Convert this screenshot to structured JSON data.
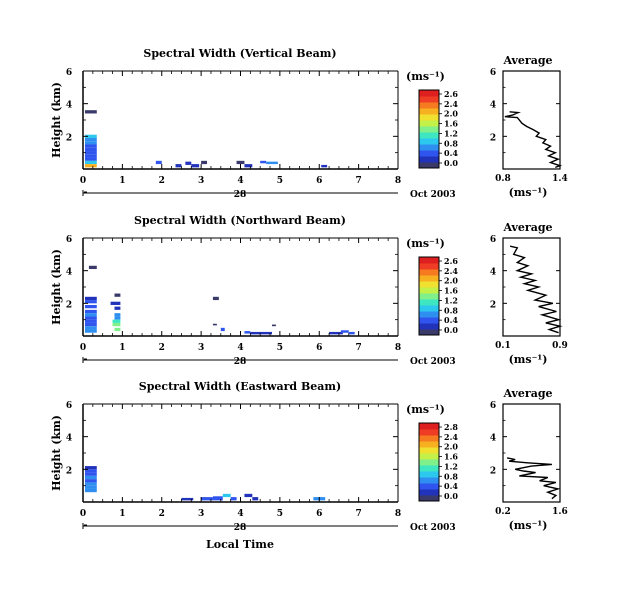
{
  "figure": {
    "xlabel": "Local Time",
    "date_label": "Oct 2003",
    "day_label": "28",
    "ylabel": "Height (km)",
    "colorbar_unit": "(ms⁻¹)",
    "avg_title": "Average",
    "avg_xlabel": "(ms⁻¹)"
  },
  "colors": {
    "colorbar": [
      "#3a3a6a",
      "#2233bb",
      "#2f55ee",
      "#2f8ff0",
      "#2cc8ee",
      "#3ee6c2",
      "#7ff08a",
      "#c4f04a",
      "#f0e030",
      "#f7b020",
      "#f57a20",
      "#ee3d24",
      "#dd1f1f"
    ]
  },
  "chart_data": [
    {
      "type": "heatmap",
      "title": "Spectral Width (Vertical Beam)",
      "xlim": [
        0,
        8
      ],
      "ylim": [
        0,
        6
      ],
      "x_ticks": [
        "0",
        "1",
        "2",
        "3",
        "4",
        "5",
        "6",
        "7",
        "8"
      ],
      "y_ticks": [
        "2",
        "4",
        "6"
      ],
      "colorbar_ticks": [
        "2.6",
        "2.4",
        "2.0",
        "1.6",
        "1.2",
        "0.8",
        "0.4",
        "0.0"
      ],
      "cells": [
        [
          0.05,
          0.35,
          1.9,
          2.1,
          0.9
        ],
        [
          0.05,
          0.35,
          1.7,
          1.9,
          0.7
        ],
        [
          0.05,
          0.35,
          1.5,
          1.7,
          0.6
        ],
        [
          0.05,
          0.35,
          1.3,
          1.5,
          0.5
        ],
        [
          0.05,
          0.35,
          1.1,
          1.3,
          0.5
        ],
        [
          0.05,
          0.35,
          0.9,
          1.1,
          0.4
        ],
        [
          0.05,
          0.35,
          0.7,
          0.9,
          0.45
        ],
        [
          0.05,
          0.35,
          0.5,
          0.7,
          0.5
        ],
        [
          0.05,
          0.35,
          0.3,
          0.5,
          0.9
        ],
        [
          0.05,
          0.35,
          0.1,
          0.3,
          1.9
        ],
        [
          0.05,
          0.35,
          3.4,
          3.6,
          0.1
        ],
        [
          1.85,
          2.0,
          0.3,
          0.5,
          0.4
        ],
        [
          2.35,
          2.5,
          0.1,
          0.3,
          0.3
        ],
        [
          2.6,
          2.75,
          0.25,
          0.45,
          0.2
        ],
        [
          2.75,
          2.95,
          0.1,
          0.3,
          0.3
        ],
        [
          3.0,
          3.15,
          0.3,
          0.5,
          0.1
        ],
        [
          3.9,
          4.1,
          0.3,
          0.5,
          0.1
        ],
        [
          4.1,
          4.3,
          0.1,
          0.3,
          0.3
        ],
        [
          4.5,
          4.65,
          0.35,
          0.5,
          0.5
        ],
        [
          4.65,
          4.95,
          0.3,
          0.45,
          0.6
        ],
        [
          6.05,
          6.2,
          0.1,
          0.25,
          0.3
        ]
      ],
      "avg_xlim": [
        0.8,
        1.4
      ],
      "avg_xticks": [
        "0.8",
        "1.4"
      ],
      "avg_ylim": [
        0,
        6
      ],
      "avg_yticks": [
        "2",
        "4",
        "6"
      ],
      "avg_profile": [
        [
          0.87,
          3.5
        ],
        [
          0.96,
          3.45
        ],
        [
          0.9,
          3.3
        ],
        [
          0.82,
          3.2
        ],
        [
          0.95,
          3.15
        ],
        [
          1.0,
          2.8
        ],
        [
          1.05,
          2.6
        ],
        [
          1.12,
          2.4
        ],
        [
          1.18,
          2.2
        ],
        [
          1.15,
          2.0
        ],
        [
          1.25,
          1.8
        ],
        [
          1.22,
          1.6
        ],
        [
          1.3,
          1.4
        ],
        [
          1.25,
          1.2
        ],
        [
          1.35,
          1.0
        ],
        [
          1.28,
          0.8
        ],
        [
          1.38,
          0.6
        ],
        [
          1.3,
          0.4
        ],
        [
          1.4,
          0.2
        ],
        [
          1.35,
          0.1
        ]
      ]
    },
    {
      "type": "heatmap",
      "title": "Spectral Width (Northward Beam)",
      "xlim": [
        0,
        8
      ],
      "ylim": [
        0,
        6
      ],
      "x_ticks": [
        "0",
        "1",
        "2",
        "3",
        "4",
        "5",
        "6",
        "7",
        "8"
      ],
      "y_ticks": [
        "2",
        "4",
        "6"
      ],
      "colorbar_ticks": [
        "2.6",
        "2.4",
        "2.0",
        "1.6",
        "1.2",
        "0.8",
        "0.4",
        "0.0"
      ],
      "cells": [
        [
          0.15,
          0.35,
          4.1,
          4.3,
          0.1
        ],
        [
          0.05,
          0.35,
          2.2,
          2.4,
          0.3
        ],
        [
          0.05,
          0.35,
          2.0,
          2.2,
          0.5
        ],
        [
          0.05,
          0.35,
          1.7,
          1.9,
          0.4
        ],
        [
          0.05,
          0.35,
          1.4,
          1.6,
          0.5
        ],
        [
          0.05,
          0.35,
          1.2,
          1.4,
          0.6
        ],
        [
          0.05,
          0.35,
          1.0,
          1.2,
          0.4
        ],
        [
          0.05,
          0.35,
          0.8,
          1.0,
          0.45
        ],
        [
          0.05,
          0.35,
          0.6,
          0.8,
          0.5
        ],
        [
          0.05,
          0.35,
          0.4,
          0.6,
          0.6
        ],
        [
          0.05,
          0.35,
          0.2,
          0.4,
          0.7
        ],
        [
          0.8,
          0.95,
          2.4,
          2.6,
          0.1
        ],
        [
          0.7,
          0.95,
          1.9,
          2.1,
          0.3
        ],
        [
          0.8,
          0.95,
          1.6,
          1.8,
          0.3
        ],
        [
          0.8,
          0.95,
          1.2,
          1.4,
          0.7
        ],
        [
          0.8,
          0.95,
          1.0,
          1.2,
          0.6
        ],
        [
          0.75,
          0.95,
          0.8,
          1.0,
          1.1
        ],
        [
          0.75,
          0.95,
          0.6,
          0.8,
          1.3
        ],
        [
          0.8,
          0.95,
          0.3,
          0.5,
          1.4
        ],
        [
          3.3,
          3.45,
          2.2,
          2.4,
          0.1
        ],
        [
          3.3,
          3.4,
          0.65,
          0.75,
          0.0
        ],
        [
          3.5,
          3.6,
          0.3,
          0.5,
          0.4
        ],
        [
          4.1,
          4.25,
          0.15,
          0.3,
          0.5
        ],
        [
          4.25,
          4.8,
          0.1,
          0.25,
          0.2
        ],
        [
          4.8,
          4.9,
          0.6,
          0.7,
          0.0
        ],
        [
          6.25,
          6.6,
          0.1,
          0.25,
          0.3
        ],
        [
          6.55,
          6.75,
          0.2,
          0.35,
          0.5
        ],
        [
          6.75,
          6.9,
          0.1,
          0.25,
          0.4
        ]
      ],
      "avg_xlim": [
        0.1,
        0.9
      ],
      "avg_xticks": [
        "0.1",
        "0.9"
      ],
      "avg_ylim": [
        0,
        6
      ],
      "avg_yticks": [
        "2",
        "4",
        "6"
      ],
      "avg_profile": [
        [
          0.2,
          5.5
        ],
        [
          0.3,
          5.4
        ],
        [
          0.25,
          5.0
        ],
        [
          0.4,
          4.8
        ],
        [
          0.3,
          4.5
        ],
        [
          0.45,
          4.3
        ],
        [
          0.3,
          4.0
        ],
        [
          0.5,
          3.8
        ],
        [
          0.35,
          3.6
        ],
        [
          0.55,
          3.4
        ],
        [
          0.4,
          3.2
        ],
        [
          0.6,
          3.0
        ],
        [
          0.45,
          2.8
        ],
        [
          0.7,
          2.5
        ],
        [
          0.55,
          2.2
        ],
        [
          0.8,
          2.0
        ],
        [
          0.6,
          1.8
        ],
        [
          0.85,
          1.5
        ],
        [
          0.65,
          1.3
        ],
        [
          0.88,
          1.0
        ],
        [
          0.7,
          0.8
        ],
        [
          0.9,
          0.6
        ],
        [
          0.75,
          0.4
        ],
        [
          0.88,
          0.2
        ]
      ]
    },
    {
      "type": "heatmap",
      "title": "Spectral Width (Eastward Beam)",
      "xlim": [
        0,
        8
      ],
      "ylim": [
        0,
        6
      ],
      "x_ticks": [
        "0",
        "1",
        "2",
        "3",
        "4",
        "5",
        "6",
        "7",
        "8"
      ],
      "y_ticks": [
        "2",
        "4",
        "6"
      ],
      "colorbar_ticks": [
        "2.8",
        "2.4",
        "2.0",
        "1.6",
        "1.2",
        "0.8",
        "0.4",
        "0.0"
      ],
      "cells": [
        [
          0.05,
          0.35,
          2.0,
          2.2,
          0.2
        ],
        [
          0.05,
          0.35,
          1.8,
          2.0,
          0.4
        ],
        [
          0.05,
          0.35,
          1.6,
          1.8,
          0.5
        ],
        [
          0.05,
          0.35,
          1.4,
          1.6,
          0.6
        ],
        [
          0.05,
          0.35,
          1.2,
          1.4,
          0.5
        ],
        [
          0.05,
          0.35,
          1.0,
          1.2,
          0.6
        ],
        [
          0.05,
          0.35,
          0.8,
          1.0,
          0.55
        ],
        [
          0.05,
          0.35,
          0.6,
          0.8,
          0.6
        ],
        [
          2.5,
          2.8,
          0.1,
          0.25,
          0.3
        ],
        [
          3.0,
          3.3,
          0.1,
          0.3,
          0.4
        ],
        [
          3.3,
          3.55,
          0.1,
          0.35,
          0.5
        ],
        [
          3.55,
          3.75,
          0.3,
          0.5,
          0.8
        ],
        [
          3.75,
          3.9,
          0.1,
          0.3,
          0.4
        ],
        [
          4.1,
          4.3,
          0.3,
          0.5,
          0.2
        ],
        [
          4.3,
          4.45,
          0.1,
          0.3,
          0.3
        ],
        [
          5.85,
          6.15,
          0.1,
          0.3,
          0.6
        ]
      ],
      "avg_xlim": [
        0.2,
        1.6
      ],
      "avg_xticks": [
        "0.2",
        "1.6"
      ],
      "avg_ylim": [
        0,
        6
      ],
      "avg_yticks": [
        "2",
        "4",
        "6"
      ],
      "avg_profile": [
        [
          0.3,
          2.7
        ],
        [
          0.5,
          2.6
        ],
        [
          0.35,
          2.5
        ],
        [
          0.8,
          2.4
        ],
        [
          1.4,
          2.3
        ],
        [
          0.9,
          2.2
        ],
        [
          0.5,
          2.0
        ],
        [
          0.7,
          1.9
        ],
        [
          1.0,
          1.8
        ],
        [
          0.6,
          1.6
        ],
        [
          1.3,
          1.5
        ],
        [
          1.1,
          1.3
        ],
        [
          1.5,
          1.2
        ],
        [
          1.2,
          1.0
        ],
        [
          1.55,
          0.8
        ],
        [
          1.3,
          0.6
        ],
        [
          1.5,
          0.4
        ],
        [
          1.4,
          0.2
        ]
      ]
    }
  ]
}
